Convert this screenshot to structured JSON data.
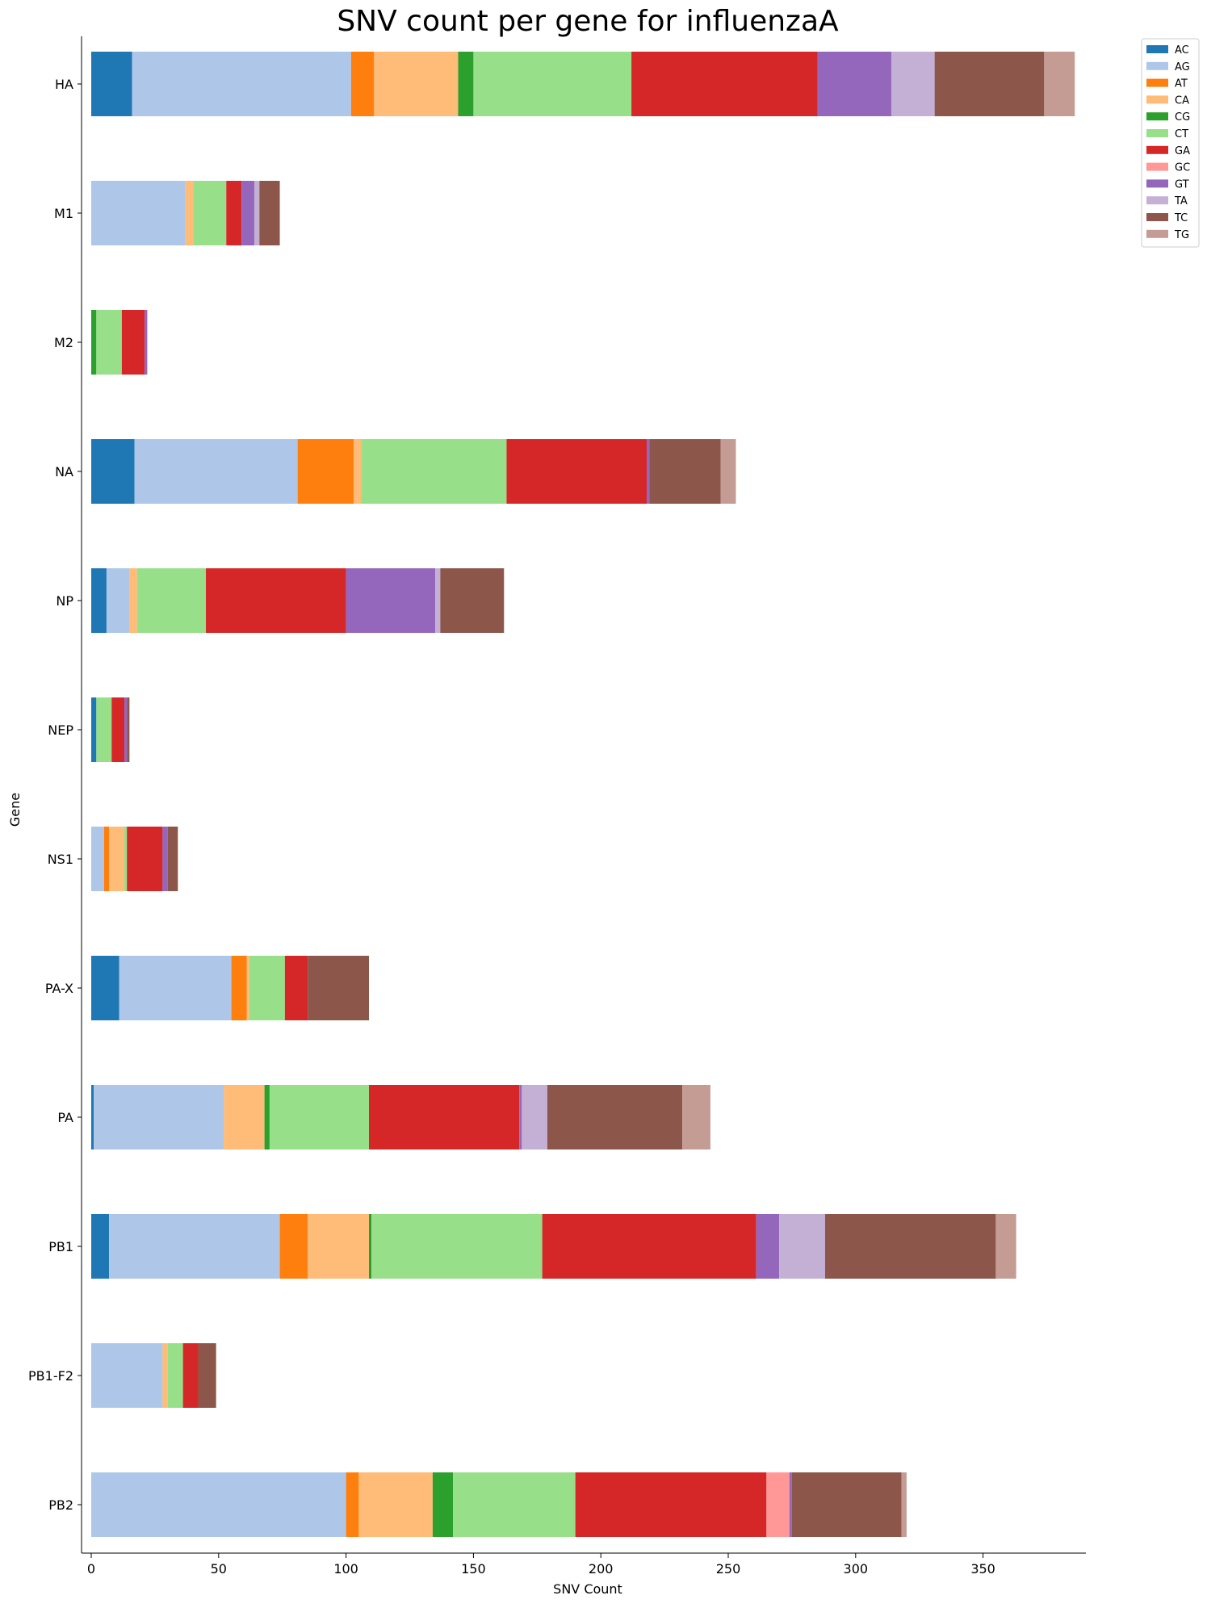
{
  "chart_data": {
    "type": "bar",
    "orientation": "horizontal",
    "stacked": true,
    "title": "SNV count per gene for influenzaA",
    "xlabel": "SNV Count",
    "ylabel": "Gene",
    "xlim": [
      0,
      390
    ],
    "xticks": [
      0,
      50,
      100,
      150,
      200,
      250,
      300,
      350
    ],
    "grid": false,
    "legend_position": "top-right, outside",
    "categories": [
      "HA",
      "M1",
      "M2",
      "NA",
      "NP",
      "NEP",
      "NS1",
      "PA-X",
      "PA",
      "PB1",
      "PB1-F2",
      "PB2"
    ],
    "series": [
      {
        "name": "AC",
        "color": "#1f77b4",
        "values": [
          16,
          0,
          0,
          17,
          6,
          2,
          0,
          11,
          1,
          7,
          0,
          0
        ]
      },
      {
        "name": "AG",
        "color": "#aec7e8",
        "values": [
          86,
          37,
          0,
          64,
          9,
          0,
          5,
          44,
          51,
          67,
          28,
          100
        ]
      },
      {
        "name": "AT",
        "color": "#ff7f0e",
        "values": [
          9,
          0,
          0,
          22,
          0,
          0,
          2,
          6,
          0,
          11,
          0,
          5
        ]
      },
      {
        "name": "CA",
        "color": "#ffbb78",
        "values": [
          33,
          3,
          0,
          3,
          3,
          0,
          6,
          1,
          16,
          24,
          2,
          29
        ]
      },
      {
        "name": "CG",
        "color": "#2ca02c",
        "values": [
          6,
          0,
          2,
          0,
          0,
          0,
          0,
          0,
          2,
          1,
          0,
          8
        ]
      },
      {
        "name": "CT",
        "color": "#98df8a",
        "values": [
          62,
          13,
          10,
          57,
          27,
          6,
          1,
          14,
          39,
          67,
          6,
          48
        ]
      },
      {
        "name": "GA",
        "color": "#d62728",
        "values": [
          73,
          6,
          9,
          55,
          55,
          5,
          14,
          9,
          59,
          84,
          6,
          75
        ]
      },
      {
        "name": "GC",
        "color": "#ff9896",
        "values": [
          0,
          0,
          0,
          0,
          0,
          0,
          0,
          0,
          0,
          0,
          0,
          9
        ]
      },
      {
        "name": "GT",
        "color": "#9467bd",
        "values": [
          29,
          5,
          1,
          1,
          35,
          1,
          2,
          0,
          1,
          9,
          0,
          1
        ]
      },
      {
        "name": "TA",
        "color": "#c5b0d5",
        "values": [
          17,
          2,
          0,
          0,
          2,
          0,
          0,
          0,
          10,
          18,
          0,
          0
        ]
      },
      {
        "name": "TC",
        "color": "#8c564b",
        "values": [
          43,
          8,
          0,
          28,
          25,
          1,
          4,
          24,
          53,
          67,
          7,
          43
        ]
      },
      {
        "name": "TG",
        "color": "#c49c94",
        "values": [
          12,
          0,
          0,
          6,
          0,
          0,
          0,
          0,
          11,
          8,
          0,
          2
        ]
      }
    ]
  }
}
